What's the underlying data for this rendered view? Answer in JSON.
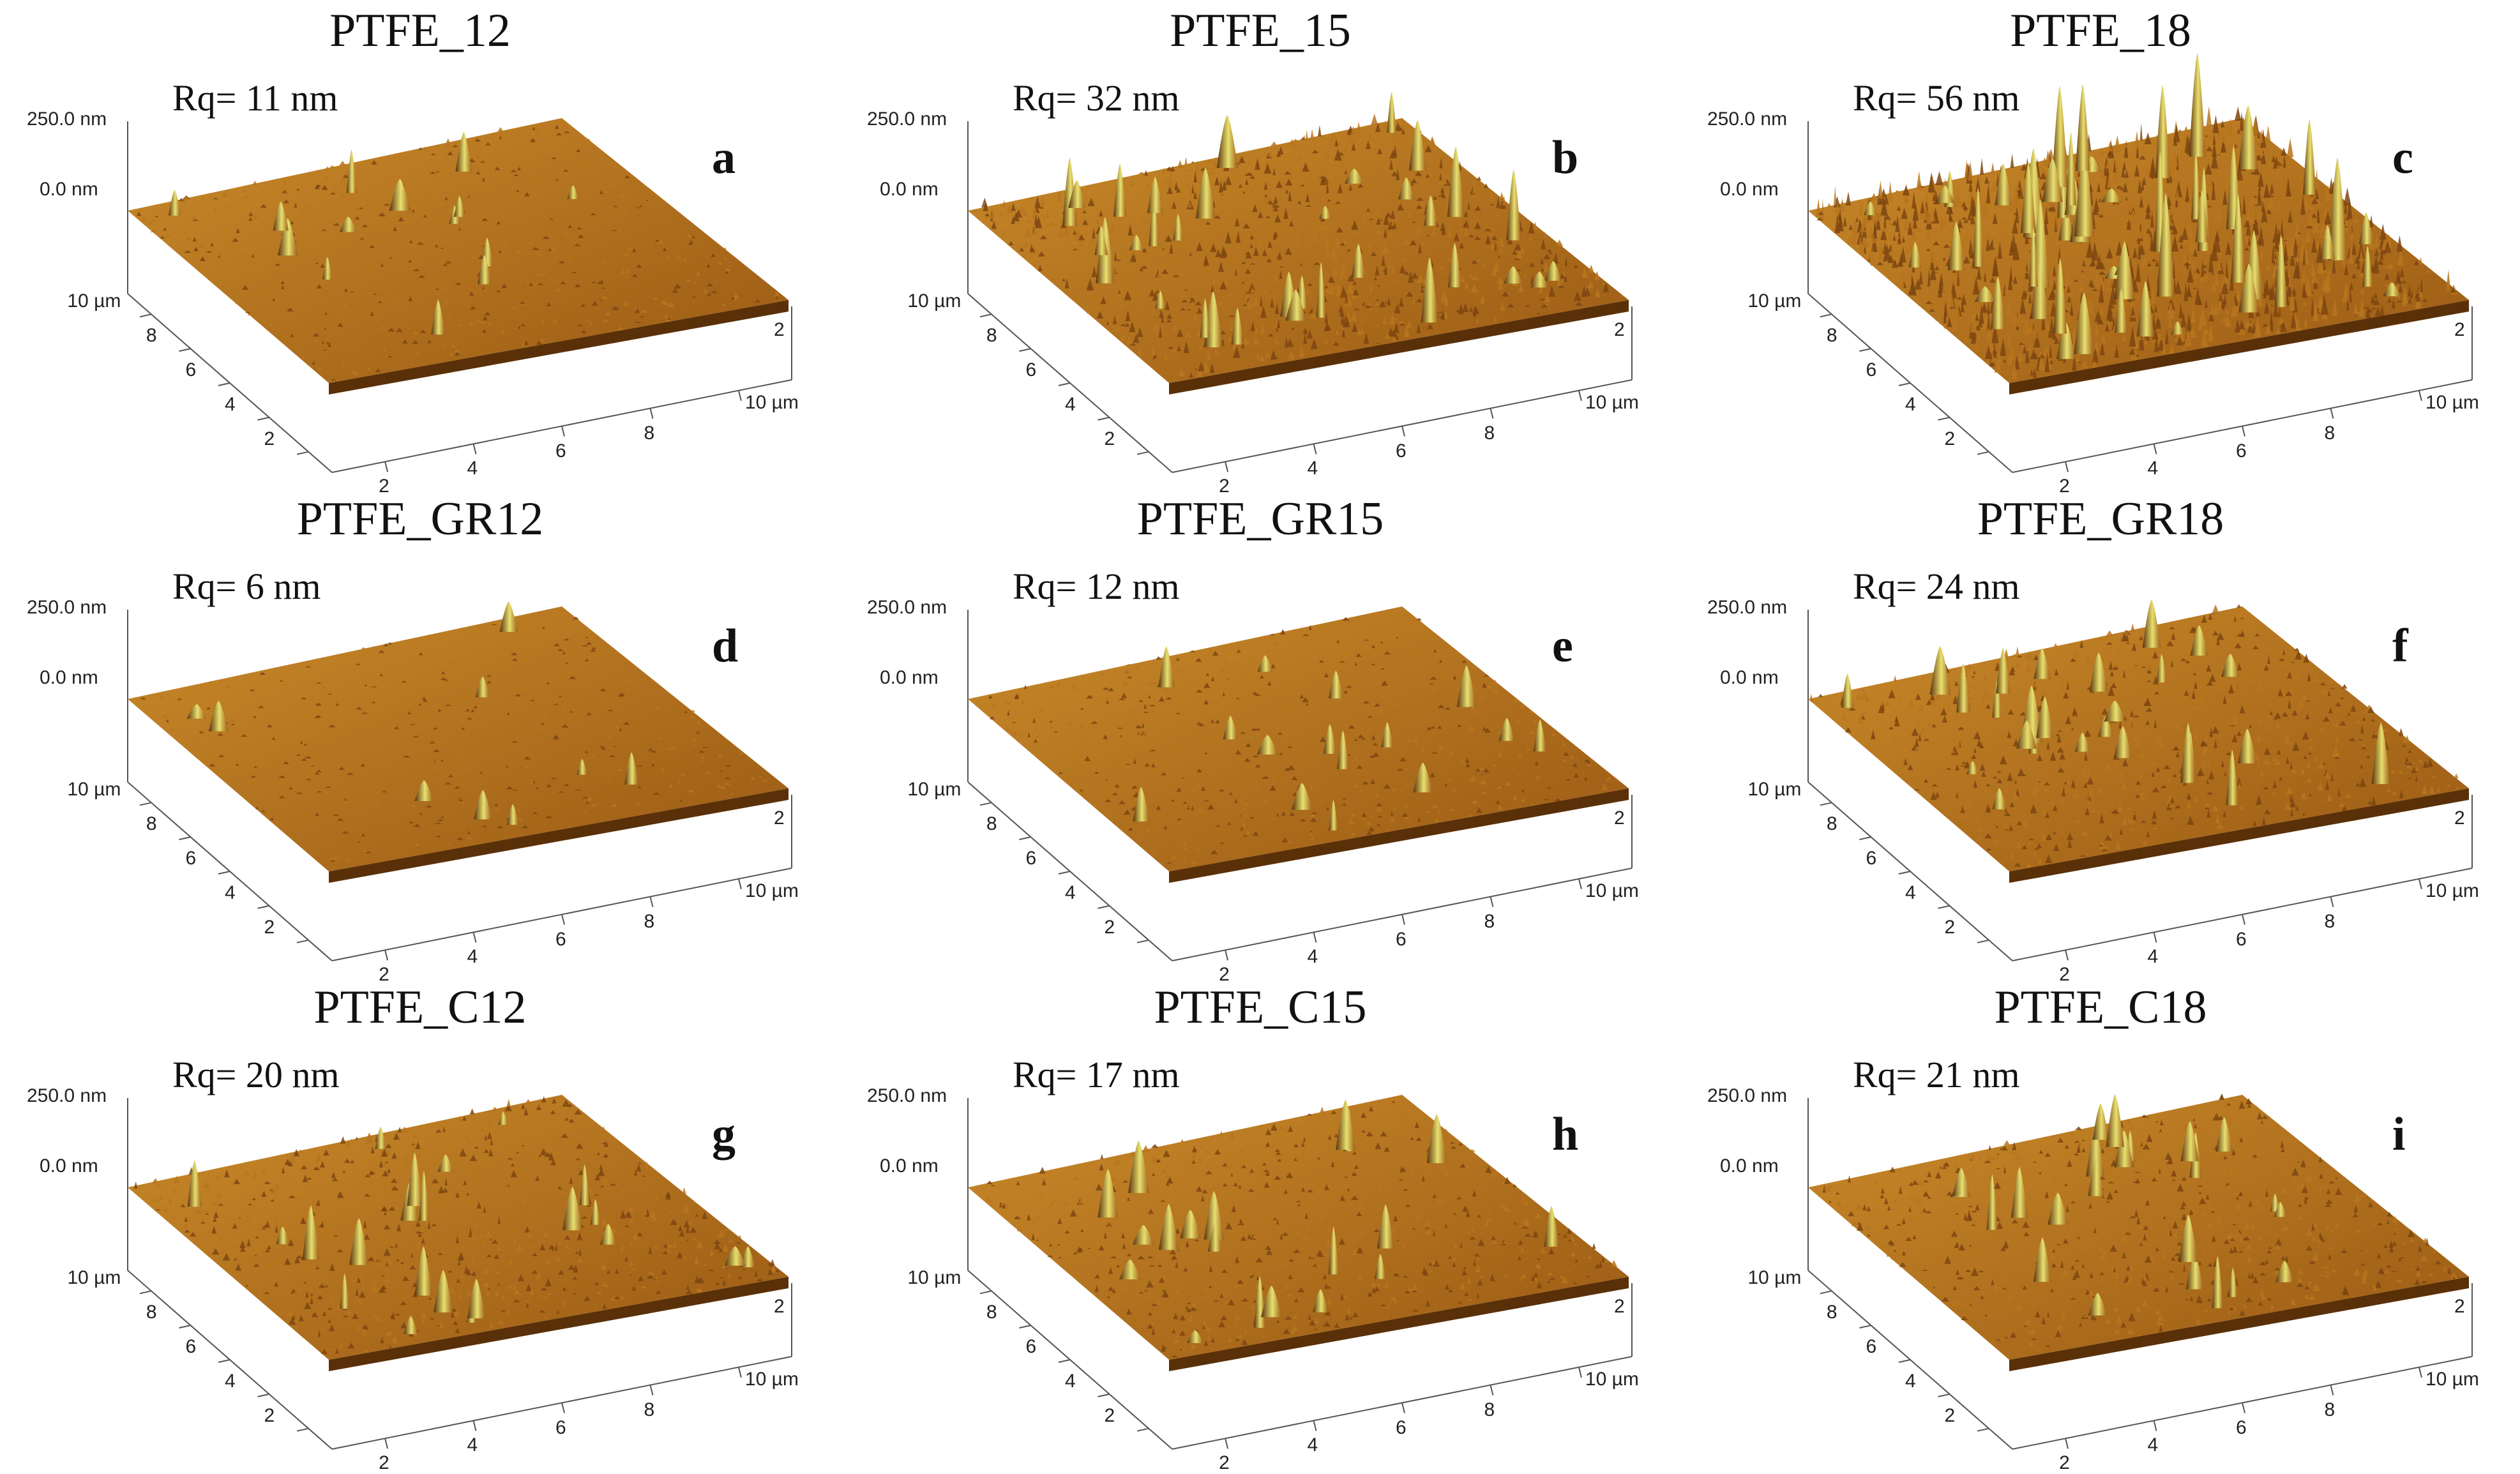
{
  "axes": {
    "z_top_label": "250.0 nm",
    "z_zero_label": "0.0 nm",
    "y_ticks": [
      "10 µm",
      "8",
      "6",
      "4",
      "2"
    ],
    "x_ticks": [
      "2",
      "4",
      "6",
      "8",
      "10 µm"
    ],
    "side_tick": "2"
  },
  "colors": {
    "surface_base": "#9a5a14",
    "surface_light": "#c98a2a",
    "peak": "#e8e070",
    "shadow": "#5a3008"
  },
  "panels": [
    {
      "title": "PTFE_12",
      "letter": "a",
      "rq": "Rq= 11 nm",
      "rq_value_nm": 11
    },
    {
      "title": "PTFE_15",
      "letter": "b",
      "rq": "Rq= 32 nm",
      "rq_value_nm": 32
    },
    {
      "title": "PTFE_18",
      "letter": "c",
      "rq": "Rq= 56 nm",
      "rq_value_nm": 56
    },
    {
      "title": "PTFE_GR12",
      "letter": "d",
      "rq": "Rq= 6 nm",
      "rq_value_nm": 6
    },
    {
      "title": "PTFE_GR15",
      "letter": "e",
      "rq": "Rq= 12 nm",
      "rq_value_nm": 12
    },
    {
      "title": "PTFE_GR18",
      "letter": "f",
      "rq": "Rq= 24 nm",
      "rq_value_nm": 24
    },
    {
      "title": "PTFE_C12",
      "letter": "g",
      "rq": "Rq= 20 nm",
      "rq_value_nm": 20
    },
    {
      "title": "PTFE_C15",
      "letter": "h",
      "rq": "Rq= 17 nm",
      "rq_value_nm": 17
    },
    {
      "title": "PTFE_C18",
      "letter": "i",
      "rq": "Rq= 21 nm",
      "rq_value_nm": 21
    }
  ]
}
